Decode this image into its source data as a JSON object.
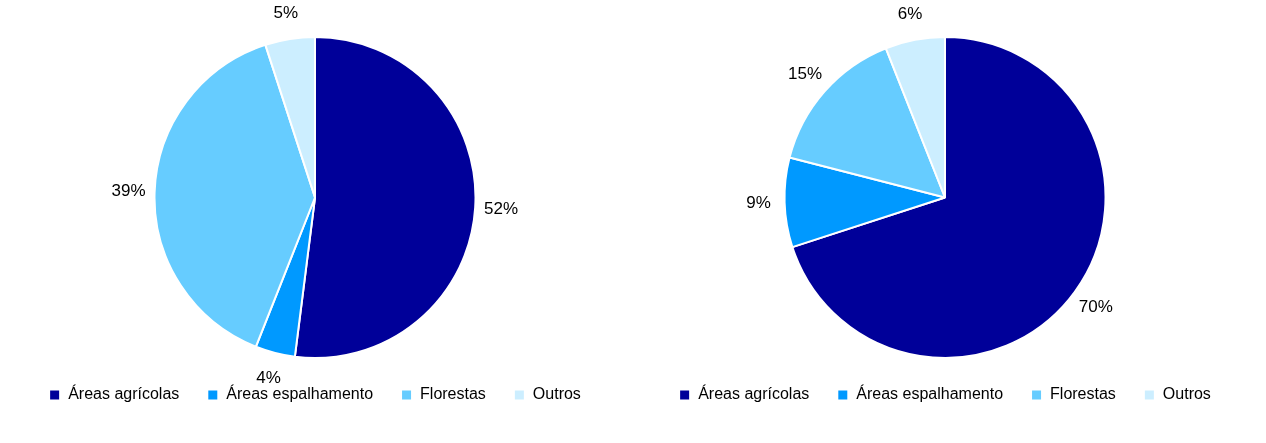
{
  "chart_data": [
    {
      "type": "pie",
      "categories": [
        "Áreas agrícolas",
        "Áreas espalhamento",
        "Florestas",
        "Outros"
      ],
      "values": [
        52,
        4,
        39,
        5
      ],
      "value_labels": [
        "52%",
        "4%",
        "39%",
        "5%"
      ],
      "colors": [
        "#000099",
        "#0099ff",
        "#66ccff",
        "#cceeff"
      ],
      "legend": "bottom"
    },
    {
      "type": "pie",
      "categories": [
        "Áreas agrícolas",
        "Áreas espalhamento",
        "Florestas",
        "Outros"
      ],
      "values": [
        70,
        9,
        15,
        6
      ],
      "value_labels": [
        "70%",
        "9%",
        "15%",
        "6%"
      ],
      "colors": [
        "#000099",
        "#0099ff",
        "#66ccff",
        "#cceeff"
      ],
      "legend": "bottom"
    }
  ]
}
